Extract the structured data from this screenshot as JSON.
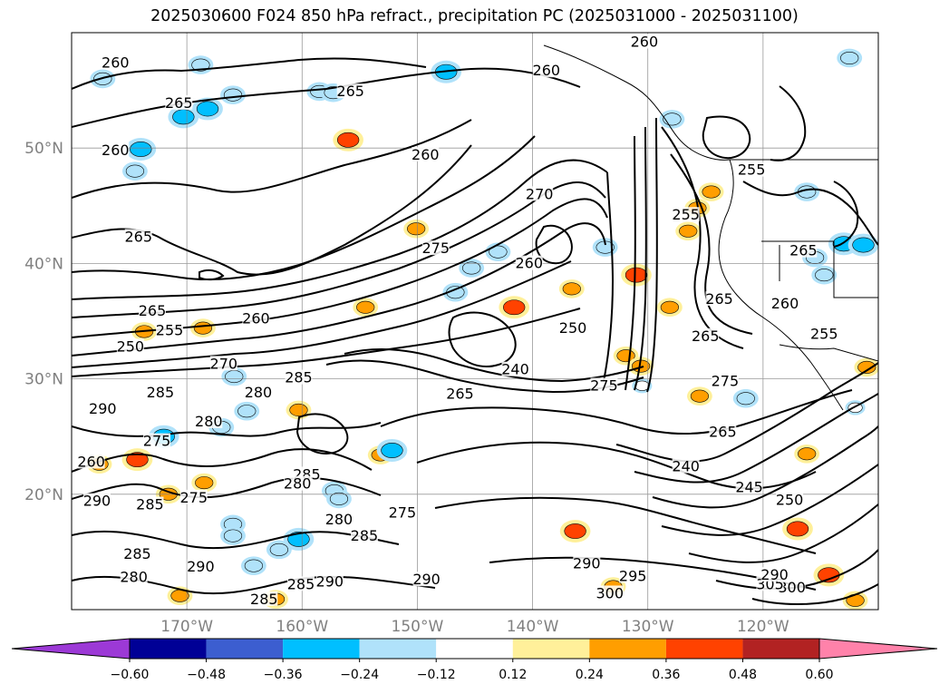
{
  "title": "2025030600 F024 850 hPa refract., precipitation PC (2025031000 - 2025031100)",
  "map": {
    "region": "Northeast Pacific / North America west coast",
    "lon_range": [
      -180,
      -110
    ],
    "lat_range": [
      10,
      60
    ],
    "gridlines": true,
    "lat_labels": [
      "50°N",
      "40°N",
      "30°N",
      "20°N"
    ],
    "lon_labels": [
      "170°W",
      "160°W",
      "150°W",
      "140°W",
      "130°W",
      "120°W"
    ],
    "contour_color": "#000000",
    "contour_labels": [
      {
        "text": "260",
        "lon": -176.2,
        "lat": 57.3
      },
      {
        "text": "260",
        "lon": -176.2,
        "lat": 49.7
      },
      {
        "text": "265",
        "lon": -174.2,
        "lat": 42.2
      },
      {
        "text": "265",
        "lon": -173,
        "lat": 35.8
      },
      {
        "text": "265",
        "lon": -170.7,
        "lat": 53.8
      },
      {
        "text": "265",
        "lon": -155.8,
        "lat": 54.8
      },
      {
        "text": "260",
        "lon": -149.3,
        "lat": 49.3
      },
      {
        "text": "260",
        "lon": -138.8,
        "lat": 56.6
      },
      {
        "text": "260",
        "lon": -130.3,
        "lat": 59.1
      },
      {
        "text": "255",
        "lon": -171.5,
        "lat": 34.1
      },
      {
        "text": "250",
        "lon": -174.9,
        "lat": 32.7
      },
      {
        "text": "260",
        "lon": -164,
        "lat": 35.1
      },
      {
        "text": "270",
        "lon": -166.8,
        "lat": 31.2
      },
      {
        "text": "285",
        "lon": -172.3,
        "lat": 28.7
      },
      {
        "text": "280",
        "lon": -163.8,
        "lat": 28.7
      },
      {
        "text": "285",
        "lon": -160.3,
        "lat": 30.0
      },
      {
        "text": "290",
        "lon": -177.3,
        "lat": 27.3
      },
      {
        "text": "280",
        "lon": -168.1,
        "lat": 26.2
      },
      {
        "text": "275",
        "lon": -172.6,
        "lat": 24.5
      },
      {
        "text": "260",
        "lon": -178.3,
        "lat": 22.7
      },
      {
        "text": "290",
        "lon": -177.8,
        "lat": 19.3
      },
      {
        "text": "285",
        "lon": -173.2,
        "lat": 19.0
      },
      {
        "text": "275",
        "lon": -169.4,
        "lat": 19.6
      },
      {
        "text": "285",
        "lon": -159.6,
        "lat": 21.6
      },
      {
        "text": "280",
        "lon": -160.4,
        "lat": 20.8
      },
      {
        "text": "280",
        "lon": -156.8,
        "lat": 17.7
      },
      {
        "text": "275",
        "lon": -151.3,
        "lat": 18.3
      },
      {
        "text": "285",
        "lon": -154.6,
        "lat": 16.3
      },
      {
        "text": "285",
        "lon": -174.3,
        "lat": 14.7
      },
      {
        "text": "290",
        "lon": -168.8,
        "lat": 13.6
      },
      {
        "text": "280",
        "lon": -174.6,
        "lat": 12.7
      },
      {
        "text": "285",
        "lon": -160.1,
        "lat": 12.1
      },
      {
        "text": "285",
        "lon": -163.3,
        "lat": 10.8
      },
      {
        "text": "290",
        "lon": -157.6,
        "lat": 12.3
      },
      {
        "text": "290",
        "lon": -149.2,
        "lat": 12.5
      },
      {
        "text": "275",
        "lon": -148.4,
        "lat": 41.2
      },
      {
        "text": "270",
        "lon": -139.4,
        "lat": 45.9
      },
      {
        "text": "260",
        "lon": -140.3,
        "lat": 39.9
      },
      {
        "text": "250",
        "lon": -136.5,
        "lat": 34.3
      },
      {
        "text": "240",
        "lon": -141.5,
        "lat": 30.7
      },
      {
        "text": "265",
        "lon": -146.3,
        "lat": 28.6
      },
      {
        "text": "275",
        "lon": -133.8,
        "lat": 29.3
      },
      {
        "text": "255",
        "lon": -126.7,
        "lat": 44.1
      },
      {
        "text": "255",
        "lon": -121.0,
        "lat": 48.0
      },
      {
        "text": "265",
        "lon": -116.5,
        "lat": 41.0
      },
      {
        "text": "260",
        "lon": -118.1,
        "lat": 36.4
      },
      {
        "text": "255",
        "lon": -114.7,
        "lat": 33.8
      },
      {
        "text": "265",
        "lon": -125.0,
        "lat": 33.6
      },
      {
        "text": "265",
        "lon": -123.8,
        "lat": 36.8
      },
      {
        "text": "275",
        "lon": -123.3,
        "lat": 29.7
      },
      {
        "text": "265",
        "lon": -123.5,
        "lat": 25.3
      },
      {
        "text": "240",
        "lon": -126.7,
        "lat": 22.3
      },
      {
        "text": "245",
        "lon": -121.2,
        "lat": 20.5
      },
      {
        "text": "250",
        "lon": -117.7,
        "lat": 19.4
      },
      {
        "text": "290",
        "lon": -135.3,
        "lat": 13.9
      },
      {
        "text": "295",
        "lon": -131.3,
        "lat": 12.8
      },
      {
        "text": "300",
        "lon": -133.3,
        "lat": 11.3
      },
      {
        "text": "300",
        "lon": -117.5,
        "lat": 11.8
      },
      {
        "text": "305",
        "lon": -119.4,
        "lat": 12.1
      },
      {
        "text": "290",
        "lon": -119.0,
        "lat": 12.9
      }
    ],
    "precip_patches": [
      {
        "lon": -177.3,
        "lat": 56.0,
        "value": -0.24
      },
      {
        "lon": -170.3,
        "lat": 52.7,
        "value": -0.36
      },
      {
        "lon": -168.2,
        "lat": 53.4,
        "value": -0.36
      },
      {
        "lon": -166.0,
        "lat": 54.6,
        "value": -0.24
      },
      {
        "lon": -174.0,
        "lat": 49.9,
        "value": -0.36
      },
      {
        "lon": -174.5,
        "lat": 48.0,
        "value": -0.24
      },
      {
        "lon": -147.5,
        "lat": 56.6,
        "value": -0.36
      },
      {
        "lon": -158.5,
        "lat": 54.9,
        "value": -0.24
      },
      {
        "lon": -156.0,
        "lat": 50.7,
        "value": 0.36
      },
      {
        "lon": -168.8,
        "lat": 57.2,
        "value": -0.24
      },
      {
        "lon": -154.5,
        "lat": 36.2,
        "value": 0.24
      },
      {
        "lon": -143.0,
        "lat": 41.0,
        "value": -0.24
      },
      {
        "lon": -145.3,
        "lat": 39.6,
        "value": -0.24
      },
      {
        "lon": -146.7,
        "lat": 37.5,
        "value": -0.24
      },
      {
        "lon": -141.6,
        "lat": 36.2,
        "value": 0.36
      },
      {
        "lon": -150.1,
        "lat": 43.0,
        "value": 0.24
      },
      {
        "lon": -136.6,
        "lat": 37.8,
        "value": 0.24
      },
      {
        "lon": -133.7,
        "lat": 41.4,
        "value": -0.24
      },
      {
        "lon": -131.0,
        "lat": 39.0,
        "value": 0.36
      },
      {
        "lon": -131.9,
        "lat": 32.0,
        "value": 0.24
      },
      {
        "lon": -130.6,
        "lat": 31.1,
        "value": 0.24
      },
      {
        "lon": -128.1,
        "lat": 36.2,
        "value": 0.24
      },
      {
        "lon": -126.5,
        "lat": 42.8,
        "value": 0.24
      },
      {
        "lon": -124.5,
        "lat": 46.2,
        "value": 0.24
      },
      {
        "lon": -125.7,
        "lat": 44.8,
        "value": 0.24
      },
      {
        "lon": -115.5,
        "lat": 40.5,
        "value": -0.24
      },
      {
        "lon": -113.0,
        "lat": 41.7,
        "value": -0.36
      },
      {
        "lon": -111.3,
        "lat": 41.6,
        "value": -0.36
      },
      {
        "lon": -114.7,
        "lat": 39.0,
        "value": -0.24
      },
      {
        "lon": -157.3,
        "lat": 54.8,
        "value": -0.24
      },
      {
        "lon": -164.8,
        "lat": 27.2,
        "value": -0.24
      },
      {
        "lon": -165.9,
        "lat": 30.2,
        "value": -0.24
      },
      {
        "lon": -173.7,
        "lat": 34.1,
        "value": 0.24
      },
      {
        "lon": -168.6,
        "lat": 34.4,
        "value": 0.24
      },
      {
        "lon": -177.6,
        "lat": 22.6,
        "value": 0.24
      },
      {
        "lon": -174.3,
        "lat": 23.0,
        "value": 0.36
      },
      {
        "lon": -172.0,
        "lat": 25.0,
        "value": -0.36
      },
      {
        "lon": -167.0,
        "lat": 25.8,
        "value": -0.24
      },
      {
        "lon": -168.5,
        "lat": 21.0,
        "value": 0.24
      },
      {
        "lon": -171.6,
        "lat": 20.0,
        "value": 0.24
      },
      {
        "lon": -166.0,
        "lat": 17.4,
        "value": -0.24
      },
      {
        "lon": -160.3,
        "lat": 16.1,
        "value": -0.36
      },
      {
        "lon": -162.0,
        "lat": 15.2,
        "value": -0.24
      },
      {
        "lon": -164.2,
        "lat": 13.8,
        "value": -0.24
      },
      {
        "lon": -166.0,
        "lat": 16.4,
        "value": -0.24
      },
      {
        "lon": -170.6,
        "lat": 11.2,
        "value": 0.24
      },
      {
        "lon": -162.3,
        "lat": 10.9,
        "value": 0.24
      },
      {
        "lon": -153.2,
        "lat": 23.4,
        "value": 0.24
      },
      {
        "lon": -152.2,
        "lat": 23.8,
        "value": -0.36
      },
      {
        "lon": -157.2,
        "lat": 20.3,
        "value": -0.24
      },
      {
        "lon": -156.8,
        "lat": 19.6,
        "value": -0.24
      },
      {
        "lon": -160.3,
        "lat": 27.3,
        "value": 0.24
      },
      {
        "lon": -136.3,
        "lat": 16.8,
        "value": 0.36
      },
      {
        "lon": -130.5,
        "lat": 29.4,
        "value": -0.12
      },
      {
        "lon": -125.5,
        "lat": 28.5,
        "value": 0.24
      },
      {
        "lon": -121.5,
        "lat": 28.3,
        "value": -0.24
      },
      {
        "lon": -117.0,
        "lat": 17.0,
        "value": 0.36
      },
      {
        "lon": -116.2,
        "lat": 23.5,
        "value": 0.24
      },
      {
        "lon": -112.0,
        "lat": 27.5,
        "value": -0.12
      },
      {
        "lon": -111.0,
        "lat": 31.0,
        "value": 0.24
      },
      {
        "lon": -112.0,
        "lat": 10.8,
        "value": 0.24
      },
      {
        "lon": -114.3,
        "lat": 13.0,
        "value": 0.36
      },
      {
        "lon": -127.9,
        "lat": 52.5,
        "value": -0.24
      },
      {
        "lon": -112.5,
        "lat": 57.8,
        "value": -0.24
      },
      {
        "lon": -116.2,
        "lat": 46.2,
        "value": -0.24
      },
      {
        "lon": -133.0,
        "lat": 12.0,
        "value": 0.24
      }
    ]
  },
  "colorbar": {
    "tick_labels": [
      "−0.60",
      "−0.48",
      "−0.36",
      "−0.24",
      "−0.12",
      "0.12",
      "0.24",
      "0.36",
      "0.48",
      "0.60"
    ],
    "colors": [
      "#9c39d6",
      "#000096",
      "#3c5ed0",
      "#00bfff",
      "#b0e2fa",
      "#ffffff",
      "#fff09a",
      "#ff9e00",
      "#ff4200",
      "#b22222",
      "#ff82aa"
    ],
    "extend": "both"
  }
}
